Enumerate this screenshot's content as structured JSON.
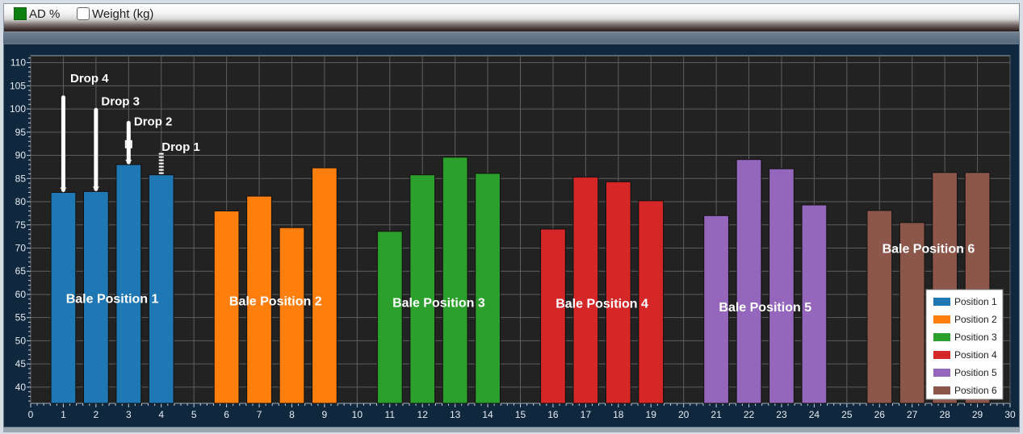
{
  "toolbar": {
    "ad_label": "AD %",
    "ad_checked": true,
    "weight_label": "Weight (kg)",
    "weight_checked": false
  },
  "chart_data": {
    "type": "bar",
    "x": [
      1,
      2,
      3,
      4,
      6,
      7,
      8,
      9,
      11,
      12,
      13,
      14,
      16,
      17,
      18,
      19,
      21,
      22,
      23,
      24,
      26,
      27,
      28,
      29
    ],
    "values": [
      82,
      82.2,
      88,
      85.8,
      78,
      81.2,
      74.4,
      87.3,
      73.6,
      85.8,
      89.6,
      86.1,
      74.1,
      85.3,
      84.3,
      80.2,
      77,
      89.1,
      87.1,
      79.3,
      78.1,
      75.5,
      86.3,
      86.3
    ],
    "series": [
      {
        "name": "Position 1",
        "color": "#1f77b4",
        "x": [
          1,
          2,
          3,
          4
        ],
        "values": [
          82,
          82.2,
          88,
          85.8
        ]
      },
      {
        "name": "Position 2",
        "color": "#ff7f0e",
        "x": [
          6,
          7,
          8,
          9
        ],
        "values": [
          78,
          81.2,
          74.4,
          87.3
        ]
      },
      {
        "name": "Position 3",
        "color": "#2ca02c",
        "x": [
          11,
          12,
          13,
          14
        ],
        "values": [
          73.6,
          85.8,
          89.6,
          86.1
        ]
      },
      {
        "name": "Position 4",
        "color": "#d62728",
        "x": [
          16,
          17,
          18,
          19
        ],
        "values": [
          74.1,
          85.3,
          84.3,
          80.2
        ]
      },
      {
        "name": "Position 5",
        "color": "#9467bd",
        "x": [
          21,
          22,
          23,
          24
        ],
        "values": [
          77,
          89.1,
          87.1,
          79.3
        ]
      },
      {
        "name": "Position 6",
        "color": "#8c564b",
        "x": [
          26,
          27,
          28,
          29
        ],
        "values": [
          78.1,
          75.5,
          86.3,
          86.3
        ]
      }
    ],
    "group_labels": [
      {
        "text": "Bale Position 1",
        "x": 2.5,
        "y": 59
      },
      {
        "text": "Bale Position 2",
        "x": 7.5,
        "y": 58.5
      },
      {
        "text": "Bale Position 3",
        "x": 12.5,
        "y": 58.2
      },
      {
        "text": "Bale Position 4",
        "x": 17.5,
        "y": 58
      },
      {
        "text": "Bale Position 5",
        "x": 22.5,
        "y": 57.2
      },
      {
        "text": "Bale Position 6",
        "x": 27.5,
        "y": 69.8
      }
    ],
    "drops": [
      {
        "label": "Drop 4",
        "x": 1,
        "from": 102.5,
        "to": 82,
        "label_x": 1.8,
        "label_y": 106.6
      },
      {
        "label": "Drop 3",
        "x": 2,
        "from": 99.8,
        "to": 82.2,
        "label_x": 2.75,
        "label_y": 101.7
      },
      {
        "label": "Drop 2",
        "x": 3,
        "from": 97,
        "to": 88,
        "label_x": 3.75,
        "label_y": 97.3
      },
      {
        "label": "Drop 1",
        "x": 4,
        "from": 90.5,
        "to": 85.8,
        "label_x": 4.6,
        "label_y": 91.8
      }
    ],
    "xlim": [
      0,
      30
    ],
    "ylim": [
      36.5,
      111.5
    ],
    "x_ticks": [
      0,
      1,
      2,
      3,
      4,
      5,
      6,
      7,
      8,
      9,
      10,
      11,
      12,
      13,
      14,
      15,
      16,
      17,
      18,
      19,
      20,
      21,
      22,
      23,
      24,
      25,
      26,
      27,
      28,
      29,
      30
    ],
    "y_ticks": [
      40,
      45,
      50,
      55,
      60,
      65,
      70,
      75,
      80,
      85,
      90,
      95,
      100,
      105,
      110
    ],
    "grid": true,
    "legend": "bottom-right",
    "xlabel": "",
    "ylabel": ""
  }
}
